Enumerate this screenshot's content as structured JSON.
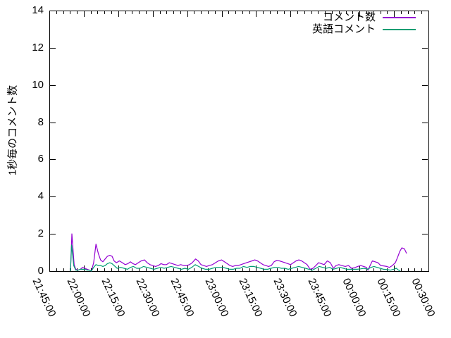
{
  "figure": {
    "background": "#ffffff",
    "axis_color": "#000000",
    "text_color": "#000000"
  },
  "chart_data": {
    "type": "line",
    "title": "",
    "xlabel": "",
    "ylabel": "1秒毎のコメント数",
    "ylim": [
      0,
      14
    ],
    "y_ticks": [
      0,
      2,
      4,
      6,
      8,
      10,
      12,
      14
    ],
    "grid": false,
    "legend_position": "top-right-inside",
    "x_axis": {
      "unit": "minutes after 21:45:00",
      "range_minutes": [
        0,
        165
      ],
      "major_tick_every_minutes": 15,
      "minor_tick_every_minutes": 3
    },
    "x_ticks": [
      {
        "label": "21:45:00",
        "min": 0
      },
      {
        "label": "22:00:00",
        "min": 15
      },
      {
        "label": "22:15:00",
        "min": 30
      },
      {
        "label": "22:30:00",
        "min": 45
      },
      {
        "label": "22:45:00",
        "min": 60
      },
      {
        "label": "23:00:00",
        "min": 75
      },
      {
        "label": "23:15:00",
        "min": 90
      },
      {
        "label": "23:30:00",
        "min": 105
      },
      {
        "label": "23:45:00",
        "min": 120
      },
      {
        "label": "00:00:00",
        "min": 135
      },
      {
        "label": "00:15:00",
        "min": 150
      },
      {
        "label": "00:30:00",
        "min": 165
      }
    ],
    "series": [
      {
        "name": "コメント数",
        "color": "#9400d3",
        "points": [
          [
            9.2,
            0
          ],
          [
            9.8,
            2.0
          ],
          [
            10.8,
            0.35
          ],
          [
            11.5,
            0.1
          ],
          [
            12.5,
            0.05
          ],
          [
            13.5,
            0.1
          ],
          [
            14.5,
            0.2
          ],
          [
            15.5,
            0.15
          ],
          [
            16.5,
            0.1
          ],
          [
            17.5,
            0.05
          ],
          [
            18.3,
            0.0
          ],
          [
            19.3,
            0.45
          ],
          [
            20.3,
            1.45
          ],
          [
            21.3,
            0.95
          ],
          [
            22.3,
            0.6
          ],
          [
            23.3,
            0.5
          ],
          [
            24.3,
            0.65
          ],
          [
            25.3,
            0.8
          ],
          [
            26.3,
            0.85
          ],
          [
            27.3,
            0.8
          ],
          [
            28.2,
            0.55
          ],
          [
            29.2,
            0.45
          ],
          [
            30.5,
            0.55
          ],
          [
            31.8,
            0.45
          ],
          [
            33,
            0.35
          ],
          [
            34.2,
            0.4
          ],
          [
            35.3,
            0.5
          ],
          [
            36.4,
            0.4
          ],
          [
            37.5,
            0.35
          ],
          [
            38.7,
            0.45
          ],
          [
            40,
            0.55
          ],
          [
            41.4,
            0.6
          ],
          [
            42.6,
            0.45
          ],
          [
            43.8,
            0.35
          ],
          [
            45,
            0.3
          ],
          [
            46.2,
            0.25
          ],
          [
            47.4,
            0.3
          ],
          [
            48.6,
            0.4
          ],
          [
            49.8,
            0.35
          ],
          [
            51,
            0.35
          ],
          [
            52.2,
            0.45
          ],
          [
            53.5,
            0.4
          ],
          [
            54.8,
            0.35
          ],
          [
            56,
            0.3
          ],
          [
            57.2,
            0.35
          ],
          [
            58.5,
            0.3
          ],
          [
            59.8,
            0.3
          ],
          [
            61,
            0.35
          ],
          [
            62.2,
            0.45
          ],
          [
            63.6,
            0.65
          ],
          [
            64.8,
            0.55
          ],
          [
            66,
            0.35
          ],
          [
            67.2,
            0.3
          ],
          [
            68.4,
            0.25
          ],
          [
            69.6,
            0.3
          ],
          [
            71,
            0.35
          ],
          [
            72.3,
            0.45
          ],
          [
            73.6,
            0.55
          ],
          [
            75,
            0.6
          ],
          [
            76.2,
            0.5
          ],
          [
            77.4,
            0.4
          ],
          [
            78.6,
            0.3
          ],
          [
            79.8,
            0.25
          ],
          [
            81,
            0.3
          ],
          [
            82.2,
            0.3
          ],
          [
            83.4,
            0.35
          ],
          [
            84.6,
            0.4
          ],
          [
            85.8,
            0.45
          ],
          [
            87,
            0.5
          ],
          [
            88.2,
            0.55
          ],
          [
            89.4,
            0.6
          ],
          [
            90.6,
            0.55
          ],
          [
            91.8,
            0.45
          ],
          [
            93,
            0.35
          ],
          [
            94.2,
            0.3
          ],
          [
            95.4,
            0.25
          ],
          [
            96.6,
            0.3
          ],
          [
            97.8,
            0.5
          ],
          [
            99,
            0.58
          ],
          [
            100.2,
            0.55
          ],
          [
            101.4,
            0.5
          ],
          [
            102.6,
            0.45
          ],
          [
            103.8,
            0.4
          ],
          [
            105,
            0.35
          ],
          [
            106.2,
            0.45
          ],
          [
            107.4,
            0.55
          ],
          [
            108.6,
            0.6
          ],
          [
            109.8,
            0.55
          ],
          [
            111,
            0.45
          ],
          [
            112.2,
            0.35
          ],
          [
            113.5,
            0.1
          ],
          [
            114.8,
            0.15
          ],
          [
            116,
            0.3
          ],
          [
            117.2,
            0.45
          ],
          [
            118.4,
            0.4
          ],
          [
            119.6,
            0.35
          ],
          [
            121,
            0.55
          ],
          [
            122.3,
            0.45
          ],
          [
            123.6,
            0.15
          ],
          [
            124.8,
            0.3
          ],
          [
            126,
            0.35
          ],
          [
            127.3,
            0.3
          ],
          [
            128.8,
            0.25
          ],
          [
            130.2,
            0.3
          ],
          [
            131.5,
            0.15
          ],
          [
            132.8,
            0.18
          ],
          [
            134.2,
            0.25
          ],
          [
            135.5,
            0.3
          ],
          [
            136.8,
            0.25
          ],
          [
            138,
            0.2
          ],
          [
            138.7,
            0.05
          ],
          [
            139.6,
            0.3
          ],
          [
            140.6,
            0.55
          ],
          [
            141.8,
            0.5
          ],
          [
            143,
            0.45
          ],
          [
            144.2,
            0.3
          ],
          [
            145.5,
            0.28
          ],
          [
            146.8,
            0.25
          ],
          [
            148,
            0.2
          ],
          [
            149.3,
            0.3
          ],
          [
            150.6,
            0.45
          ],
          [
            151.6,
            0.75
          ],
          [
            152.5,
            1.05
          ],
          [
            153.4,
            1.25
          ],
          [
            154.5,
            1.2
          ],
          [
            155.5,
            0.95
          ]
        ]
      },
      {
        "name": "英語コメント",
        "color": "#009e73",
        "points": [
          [
            9.2,
            0
          ],
          [
            9.7,
            1.4
          ],
          [
            10.6,
            0.3
          ],
          [
            11.5,
            0.05
          ],
          [
            12.5,
            0.05
          ],
          [
            13.5,
            0.1
          ],
          [
            14.5,
            0.1
          ],
          [
            15.5,
            0.1
          ],
          [
            16.5,
            0.05
          ],
          [
            17.5,
            0.05
          ],
          [
            18.3,
            0
          ],
          [
            19.3,
            0.2
          ],
          [
            20.3,
            0.35
          ],
          [
            21.3,
            0.3
          ],
          [
            22.3,
            0.3
          ],
          [
            23.3,
            0.25
          ],
          [
            24.3,
            0.3
          ],
          [
            25.3,
            0.4
          ],
          [
            26.3,
            0.45
          ],
          [
            27.3,
            0.4
          ],
          [
            28.2,
            0.3
          ],
          [
            29.5,
            0.15
          ],
          [
            31,
            0.2
          ],
          [
            32.5,
            0.15
          ],
          [
            34,
            0.1
          ],
          [
            35.3,
            0.2
          ],
          [
            36.6,
            0.25
          ],
          [
            38,
            0.15
          ],
          [
            39.5,
            0.15
          ],
          [
            41,
            0.25
          ],
          [
            42.5,
            0.2
          ],
          [
            44,
            0.15
          ],
          [
            45.5,
            0.1
          ],
          [
            47,
            0.15
          ],
          [
            48.5,
            0.2
          ],
          [
            50,
            0.15
          ],
          [
            51.5,
            0.2
          ],
          [
            53,
            0.25
          ],
          [
            54.5,
            0.2
          ],
          [
            56,
            0.15
          ],
          [
            57.5,
            0.1
          ],
          [
            59,
            0.15
          ],
          [
            60.5,
            0.1
          ],
          [
            62,
            0.2
          ],
          [
            63.5,
            0.35
          ],
          [
            65,
            0.25
          ],
          [
            66.5,
            0.15
          ],
          [
            68,
            0.1
          ],
          [
            69.5,
            0.1
          ],
          [
            71,
            0.15
          ],
          [
            72.5,
            0.2
          ],
          [
            74,
            0.2
          ],
          [
            75.5,
            0.2
          ],
          [
            77,
            0.15
          ],
          [
            78.5,
            0.1
          ],
          [
            80,
            0.1
          ],
          [
            81.5,
            0.15
          ],
          [
            83,
            0.15
          ],
          [
            84.5,
            0.25
          ],
          [
            86,
            0.2
          ],
          [
            87.5,
            0.25
          ],
          [
            89,
            0.25
          ],
          [
            90.5,
            0.2
          ],
          [
            92,
            0.15
          ],
          [
            93.5,
            0.1
          ],
          [
            95,
            0.1
          ],
          [
            96.5,
            0.15
          ],
          [
            98,
            0.2
          ],
          [
            99.5,
            0.2
          ],
          [
            101,
            0.15
          ],
          [
            102.5,
            0.15
          ],
          [
            104,
            0.1
          ],
          [
            105.5,
            0.15
          ],
          [
            107,
            0.2
          ],
          [
            108.5,
            0.25
          ],
          [
            110,
            0.2
          ],
          [
            111.5,
            0.15
          ],
          [
            113,
            0.1
          ],
          [
            114.5,
            0.05
          ],
          [
            116,
            0.15
          ],
          [
            117.5,
            0.25
          ],
          [
            119,
            0.2
          ],
          [
            120.5,
            0.15
          ],
          [
            122,
            0.2
          ],
          [
            123.5,
            0.1
          ],
          [
            125,
            0.15
          ],
          [
            126.5,
            0.2
          ],
          [
            128,
            0.15
          ],
          [
            129.5,
            0.1
          ],
          [
            131,
            0.1
          ],
          [
            132.5,
            0.1
          ],
          [
            134,
            0.1
          ],
          [
            135.5,
            0.12
          ],
          [
            137,
            0.15
          ],
          [
            138.5,
            0.1
          ],
          [
            140,
            0.2
          ],
          [
            141.3,
            0.25
          ],
          [
            142.6,
            0.2
          ],
          [
            144,
            0.15
          ],
          [
            145.5,
            0.1
          ],
          [
            147,
            0.08
          ],
          [
            148.5,
            0.05
          ],
          [
            149.8,
            0.1
          ],
          [
            151,
            0.15
          ],
          [
            152,
            0.05
          ],
          [
            152.8,
            0.02
          ]
        ]
      }
    ]
  }
}
